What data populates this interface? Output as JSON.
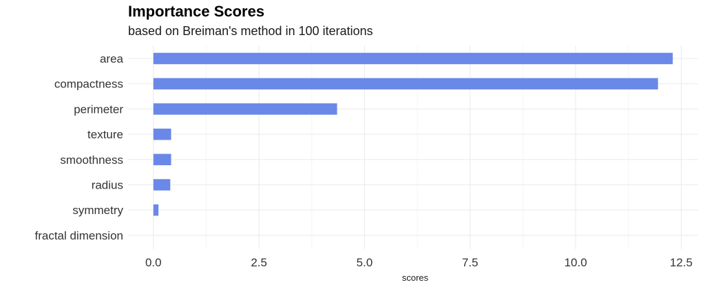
{
  "title": "Importance Scores",
  "subtitle": "based on Breiman's method in 100 iterations",
  "colors": {
    "bar": "#6a88e8",
    "grid": "#ebebeb"
  },
  "chart_data": {
    "type": "bar",
    "orientation": "horizontal",
    "title": "Importance Scores",
    "subtitle": "based on Breiman's method in 100 iterations",
    "xlabel": "scores",
    "ylabel": "",
    "categories": [
      "area",
      "compactness",
      "perimeter",
      "texture",
      "smoothness",
      "radius",
      "symmetry",
      "fractal dimension"
    ],
    "values": [
      12.3,
      11.95,
      4.35,
      0.42,
      0.42,
      0.4,
      0.12,
      0.0
    ],
    "xlim": [
      -0.6,
      12.9
    ],
    "xticks": [
      0,
      2.5,
      5,
      7.5,
      10,
      12.5
    ],
    "xtick_labels": [
      "0.0",
      "2.5",
      "5.0",
      "7.5",
      "10.0",
      "12.5"
    ],
    "grid": true,
    "legend": "none"
  }
}
